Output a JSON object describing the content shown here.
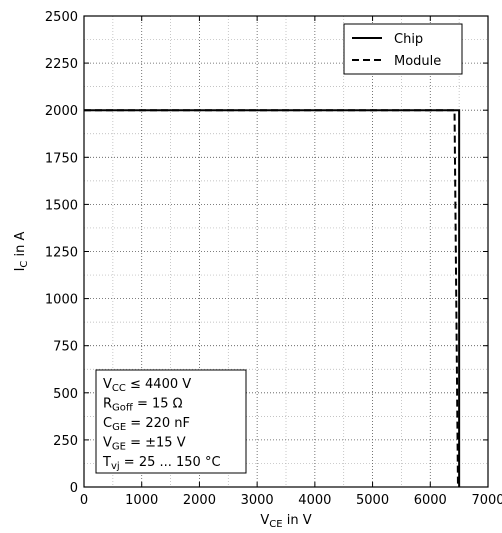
{
  "chart_data": {
    "type": "line",
    "xlabel": {
      "main": "V",
      "sub": "CE",
      "suffix": " in V"
    },
    "ylabel": {
      "main": "I",
      "sub": "C",
      "suffix": " in A"
    },
    "xlim": [
      0,
      7000
    ],
    "ylim": [
      0,
      2500
    ],
    "xticks": [
      0,
      1000,
      2000,
      3000,
      4000,
      5000,
      6000,
      7000
    ],
    "yticks": [
      0,
      250,
      500,
      750,
      1000,
      1250,
      1500,
      1750,
      2000,
      2250,
      2500
    ],
    "x_minor_step": 500,
    "y_minor_step": 125,
    "grid": true,
    "legend_position": "top-right",
    "series": [
      {
        "name": "Chip",
        "style": "solid",
        "x": [
          0,
          6500,
          6500
        ],
        "y": [
          2000,
          2000,
          0
        ]
      },
      {
        "name": "Module",
        "style": "dashed",
        "x": [
          0,
          6420,
          6480
        ],
        "y": [
          2000,
          2000,
          0
        ]
      }
    ],
    "annotation_lines": [
      [
        {
          "t": "V"
        },
        {
          "t": "CC",
          "sub": true
        },
        {
          "t": " ≤ 4400 V"
        }
      ],
      [
        {
          "t": "R"
        },
        {
          "t": "Goff",
          "sub": true
        },
        {
          "t": " = 15 Ω"
        }
      ],
      [
        {
          "t": "C"
        },
        {
          "t": "GE",
          "sub": true
        },
        {
          "t": " = 220 nF"
        }
      ],
      [
        {
          "t": "V"
        },
        {
          "t": "GE",
          "sub": true
        },
        {
          "t": " = ±15 V"
        }
      ],
      [
        {
          "t": "T"
        },
        {
          "t": "vj",
          "sub": true
        },
        {
          "t": " = 25 ... 150 °C"
        }
      ]
    ],
    "colors": {
      "line": "#000000",
      "grid": "#b0b0b0",
      "background": "#ffffff"
    }
  }
}
